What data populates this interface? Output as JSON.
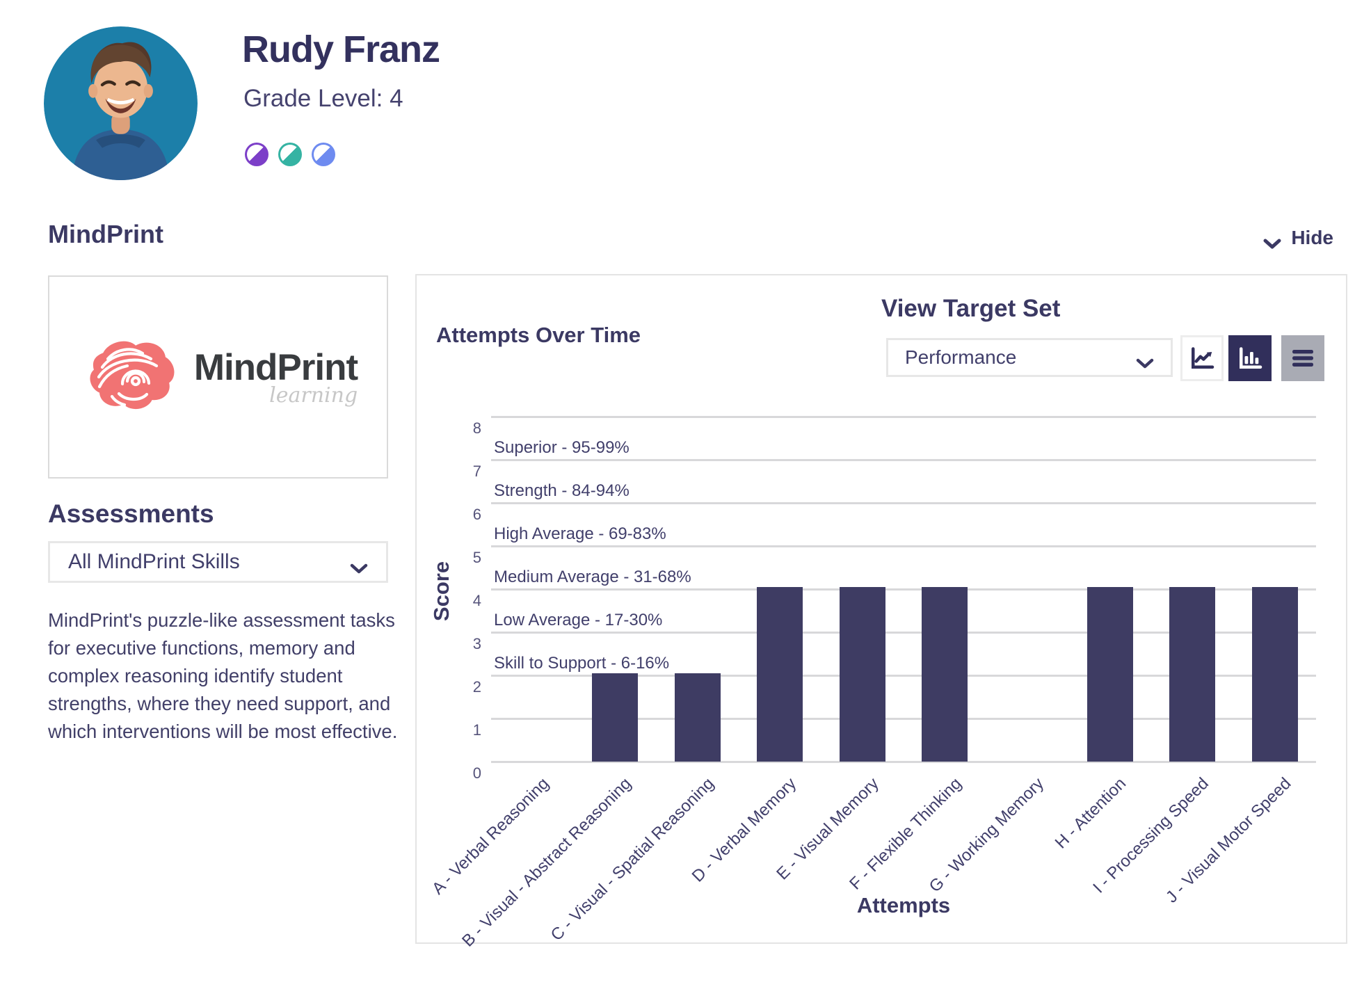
{
  "header": {
    "name": "Rudy Franz",
    "grade": "Grade Level: 4",
    "badge_colors": [
      "#7c3fc8",
      "#35b3a3",
      "#6e8bf0"
    ],
    "avatar_bg": "#1c7fa9"
  },
  "section": {
    "title": "MindPrint",
    "hide_label": "Hide"
  },
  "logo": {
    "brand": "MindPrint",
    "sub": "learning",
    "brain_color": "#f17373"
  },
  "sidebar": {
    "assessments_title": "Assessments",
    "skills_dropdown_value": "All MindPrint Skills",
    "description": "MindPrint's puzzle-like assessment tasks for executive functions, memory and complex reasoning identify student strengths, where they need support, and which interventions will be most effective."
  },
  "chart_panel": {
    "title": "Attempts Over Time",
    "target_set_title": "View Target Set",
    "target_dropdown_value": "Performance",
    "view_buttons": [
      {
        "icon": "line-chart-icon",
        "active": false
      },
      {
        "icon": "bar-chart-icon",
        "active": true
      },
      {
        "icon": "menu-icon",
        "active": false
      }
    ],
    "active_button_color": "#312f5b",
    "inactive_button_color": "#a9abb4"
  },
  "chart_data": {
    "type": "bar",
    "title": "Attempts Over Time",
    "xlabel": "Attempts",
    "ylabel": "Score",
    "ylim": [
      0,
      8
    ],
    "yticks": [
      0,
      1,
      2,
      3,
      4,
      5,
      6,
      7,
      8
    ],
    "grid": true,
    "legend_position": "none",
    "categories": [
      "A - Verbal Reasoning",
      "B - Visual - Abstract Reasoning",
      "C - Visual - Spatial Reasoning",
      "D - Verbal Memory",
      "E - Visual Memory",
      "F - Flexible Thinking",
      "G - Working Memory",
      "H - Attention",
      "I - Processing Speed",
      "J - Visual Motor Speed"
    ],
    "values": [
      0,
      2,
      2,
      4,
      4,
      4,
      0,
      4,
      4,
      4
    ],
    "bands": [
      {
        "y": 7,
        "label": "Superior - 95-99%"
      },
      {
        "y": 6,
        "label": "Strength - 84-94%"
      },
      {
        "y": 5,
        "label": "High Average - 69-83%"
      },
      {
        "y": 4,
        "label": "Medium Average - 31-68%"
      },
      {
        "y": 3,
        "label": "Low Average - 17-30%"
      },
      {
        "y": 2,
        "label": "Skill to Support - 6-16%"
      }
    ],
    "bar_color": "#3e3c63",
    "grid_color": "#d8d8da"
  }
}
